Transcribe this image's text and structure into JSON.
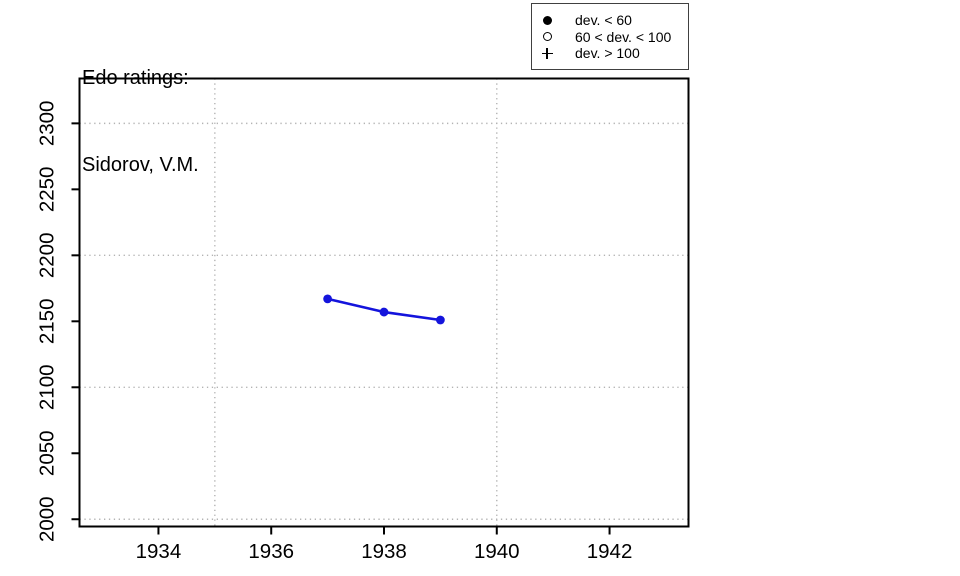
{
  "title": {
    "line1": "Edo ratings:",
    "line2": "Sidorov, V.M."
  },
  "legend": {
    "items": [
      {
        "icon": "filled-circle",
        "label": "dev. < 60"
      },
      {
        "icon": "open-circle",
        "label": "60 < dev. < 100"
      },
      {
        "icon": "plus",
        "label": "dev. > 100"
      }
    ]
  },
  "chart_data": {
    "type": "line",
    "title": "Edo ratings: Sidorov, V.M.",
    "xlabel": "",
    "ylabel": "",
    "x": [
      1937,
      1938,
      1939
    ],
    "series": [
      {
        "name": "Edo rating",
        "deviation_class": "dev. < 60",
        "marker": "filled-circle",
        "values": [
          2167,
          2157,
          2151
        ]
      }
    ],
    "xlim": [
      1932.6,
      1943.4
    ],
    "ylim": [
      1994.5,
      2334
    ],
    "x_ticks": [
      1934,
      1936,
      1938,
      1940,
      1942
    ],
    "y_ticks": [
      2000,
      2050,
      2100,
      2150,
      2200,
      2250,
      2300
    ],
    "x_gridlines": [
      1935,
      1940
    ],
    "y_gridlines": [
      2000,
      2100,
      2200,
      2300
    ],
    "grid_style": "dotted",
    "legend_position": "top-right",
    "colors": {
      "series": "#1414DC",
      "grid": "#B3B3B3",
      "axis": "#000000"
    }
  }
}
